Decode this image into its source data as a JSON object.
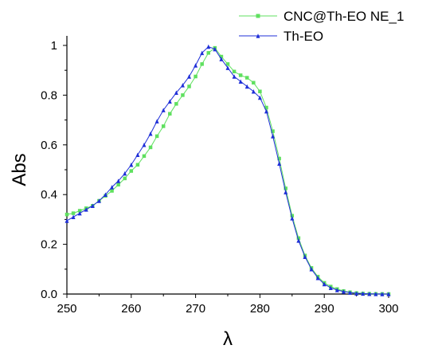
{
  "chart_data": {
    "type": "line",
    "xlabel": "λ",
    "ylabel": "Abs",
    "xlim": [
      250,
      300
    ],
    "ylim": [
      0,
      1
    ],
    "x_ticks": [
      250,
      260,
      270,
      280,
      290,
      300
    ],
    "x_tick_labels": [
      "250",
      "260",
      "270",
      "280",
      "290",
      "300"
    ],
    "y_ticks": [
      0,
      0.2,
      0.4,
      0.6,
      0.8,
      1
    ],
    "y_tick_labels": [
      "0.0",
      "0.2",
      "0.4",
      "0.6",
      "0.8",
      "1"
    ],
    "grid": false,
    "legend_position": "top-right",
    "series": [
      {
        "name": "CNC@Th-EO NE_1",
        "color": "#5fe05f",
        "marker": "square",
        "x": [
          250,
          251,
          252,
          253,
          254,
          255,
          256,
          257,
          258,
          259,
          260,
          261,
          262,
          263,
          264,
          265,
          266,
          267,
          268,
          269,
          270,
          271,
          272,
          273,
          274,
          275,
          276,
          277,
          278,
          279,
          280,
          281,
          282,
          283,
          284,
          285,
          286,
          287,
          288,
          289,
          290,
          291,
          292,
          293,
          294,
          295,
          296,
          297,
          298,
          299,
          300
        ],
        "y": [
          0.32,
          0.325,
          0.335,
          0.345,
          0.355,
          0.375,
          0.395,
          0.415,
          0.44,
          0.465,
          0.495,
          0.52,
          0.555,
          0.59,
          0.635,
          0.675,
          0.725,
          0.765,
          0.8,
          0.835,
          0.875,
          0.925,
          0.97,
          0.99,
          0.955,
          0.925,
          0.895,
          0.88,
          0.87,
          0.85,
          0.815,
          0.75,
          0.655,
          0.545,
          0.425,
          0.315,
          0.225,
          0.155,
          0.105,
          0.07,
          0.045,
          0.03,
          0.02,
          0.012,
          0.007,
          0.004,
          0.002,
          0.001,
          0.0005,
          0.0002,
          0.0
        ]
      },
      {
        "name": "Th-EO",
        "color": "#1f2fd8",
        "marker": "triangle",
        "x": [
          250,
          251,
          252,
          253,
          254,
          255,
          256,
          257,
          258,
          259,
          260,
          261,
          262,
          263,
          264,
          265,
          266,
          267,
          268,
          269,
          270,
          271,
          272,
          273,
          274,
          275,
          276,
          277,
          278,
          279,
          280,
          281,
          282,
          283,
          284,
          285,
          286,
          287,
          288,
          289,
          290,
          291,
          292,
          293,
          294,
          295,
          296,
          297,
          298,
          299,
          300
        ],
        "y": [
          0.295,
          0.31,
          0.325,
          0.34,
          0.355,
          0.375,
          0.4,
          0.43,
          0.455,
          0.485,
          0.52,
          0.56,
          0.6,
          0.645,
          0.695,
          0.74,
          0.775,
          0.81,
          0.84,
          0.875,
          0.92,
          0.97,
          0.995,
          0.985,
          0.945,
          0.91,
          0.875,
          0.855,
          0.835,
          0.815,
          0.79,
          0.735,
          0.635,
          0.525,
          0.41,
          0.305,
          0.215,
          0.15,
          0.1,
          0.065,
          0.04,
          0.025,
          0.016,
          0.01,
          0.006,
          0.003,
          0.002,
          0.001,
          0.0005,
          0.0002,
          0.0
        ]
      }
    ]
  }
}
